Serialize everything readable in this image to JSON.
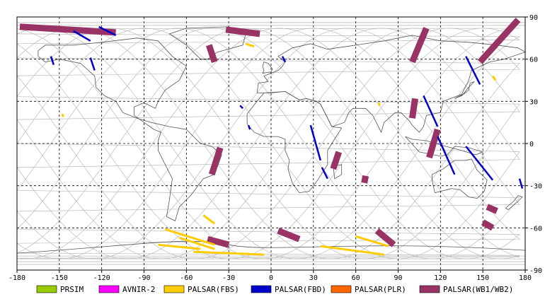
{
  "axes": {
    "x_ticks": [
      "-180",
      "-150",
      "-120",
      "-90",
      "-60",
      "-30",
      "0",
      "30",
      "60",
      "90",
      "120",
      "150",
      "180"
    ],
    "y_ticks_right": [
      "90",
      "60",
      "30",
      "0",
      "-30",
      "-60",
      "-90"
    ],
    "x_range": [
      -180,
      180
    ],
    "y_range": [
      -90,
      90
    ],
    "grid": "dashed"
  },
  "legend": [
    {
      "label": "PRSIM",
      "color": "#99cc00"
    },
    {
      "label": "AVNIR-2",
      "color": "#ff00ff"
    },
    {
      "label": "PALSAR(FBS)",
      "color": "#ffcc00"
    },
    {
      "label": "PALSAR(FBD)",
      "color": "#0000cc"
    },
    {
      "label": "PALSAR(PLR)",
      "color": "#ff6600"
    },
    {
      "label": "PALSAR(WB1/WB2)",
      "color": "#993366"
    }
  ],
  "colors": {
    "coastline": "#555555",
    "orbit": "#bbbbbb",
    "grid": "#000000"
  },
  "acquisitions": {
    "wb": [
      {
        "lon": [
          -178,
          -110
        ],
        "lat": [
          83,
          79
        ]
      },
      {
        "lon": [
          -32,
          -8
        ],
        "lat": [
          81,
          78
        ]
      },
      {
        "lon": [
          -44,
          -40
        ],
        "lat": [
          70,
          58
        ]
      },
      {
        "lon": [
          -36,
          -42
        ],
        "lat": [
          -3,
          -22
        ]
      },
      {
        "lon": [
          48,
          44
        ],
        "lat": [
          -6,
          -18
        ]
      },
      {
        "lon": [
          67,
          66
        ],
        "lat": [
          -23,
          -28
        ]
      },
      {
        "lon": [
          110,
          100
        ],
        "lat": [
          82,
          58
        ]
      },
      {
        "lon": [
          175,
          148
        ],
        "lat": [
          88,
          58
        ]
      },
      {
        "lon": [
          102,
          100
        ],
        "lat": [
          32,
          18
        ]
      },
      {
        "lon": [
          118,
          112
        ],
        "lat": [
          10,
          -10
        ]
      },
      {
        "lon": [
          -45,
          -30
        ],
        "lat": [
          -68,
          -72
        ]
      },
      {
        "lon": [
          5,
          20
        ],
        "lat": [
          -62,
          -68
        ]
      },
      {
        "lon": [
          75,
          87
        ],
        "lat": [
          -62,
          -72
        ]
      },
      {
        "lon": [
          153,
          160
        ],
        "lat": [
          -45,
          -48
        ]
      },
      {
        "lon": [
          150,
          157
        ],
        "lat": [
          -56,
          -60
        ]
      }
    ],
    "fbd": [
      {
        "lon": [
          -140,
          -128
        ],
        "lat": [
          80,
          73
        ]
      },
      {
        "lon": [
          -122,
          -110
        ],
        "lat": [
          83,
          77
        ]
      },
      {
        "lon": [
          -156,
          -154
        ],
        "lat": [
          62,
          56
        ]
      },
      {
        "lon": [
          -128,
          -125
        ],
        "lat": [
          61,
          52
        ]
      },
      {
        "lon": [
          8,
          10
        ],
        "lat": [
          62,
          58
        ]
      },
      {
        "lon": [
          -22,
          -20
        ],
        "lat": [
          27,
          25
        ]
      },
      {
        "lon": [
          -16,
          -15
        ],
        "lat": [
          13,
          10
        ]
      },
      {
        "lon": [
          28,
          35
        ],
        "lat": [
          13,
          -12
        ]
      },
      {
        "lon": [
          36,
          40
        ],
        "lat": [
          -17,
          -25
        ]
      },
      {
        "lon": [
          108,
          118
        ],
        "lat": [
          34,
          12
        ]
      },
      {
        "lon": [
          118,
          130
        ],
        "lat": [
          5,
          -22
        ]
      },
      {
        "lon": [
          138,
          148
        ],
        "lat": [
          62,
          42
        ]
      },
      {
        "lon": [
          138,
          157
        ],
        "lat": [
          -2,
          -26
        ]
      },
      {
        "lon": [
          176,
          178
        ],
        "lat": [
          -25,
          -32
        ]
      }
    ],
    "fbs": [
      {
        "lon": [
          -148,
          -147
        ],
        "lat": [
          21,
          19
        ]
      },
      {
        "lon": [
          -48,
          -40
        ],
        "lat": [
          -51,
          -57
        ]
      },
      {
        "lon": [
          -75,
          -40
        ],
        "lat": [
          -61,
          -72
        ]
      },
      {
        "lon": [
          -65,
          -40
        ],
        "lat": [
          -67,
          -75
        ]
      },
      {
        "lon": [
          -80,
          -50
        ],
        "lat": [
          -72,
          -75
        ]
      },
      {
        "lon": [
          -55,
          -5
        ],
        "lat": [
          -77,
          -79
        ]
      },
      {
        "lon": [
          60,
          83
        ],
        "lat": [
          -66,
          -73
        ]
      },
      {
        "lon": [
          35,
          80
        ],
        "lat": [
          -73,
          -79
        ]
      },
      {
        "lon": [
          -18,
          -12
        ],
        "lat": [
          71,
          69
        ]
      },
      {
        "lon": [
          157,
          159
        ],
        "lat": [
          48,
          45
        ]
      },
      {
        "lon": [
          76,
          77
        ],
        "lat": [
          29,
          27
        ]
      }
    ]
  }
}
